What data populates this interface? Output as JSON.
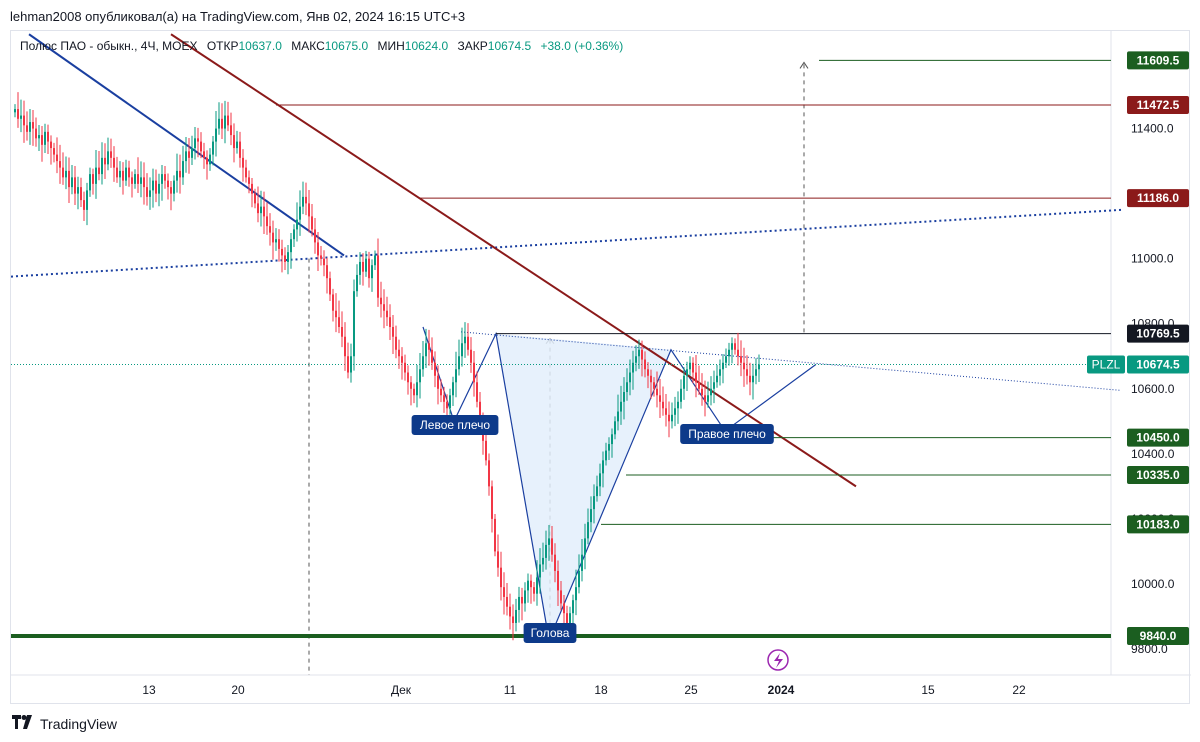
{
  "header": {
    "publisher": "lehman2008 опубликовал(а) на TradingView.com, Янв 02, 2024 16:15 UTC+3"
  },
  "legend": {
    "symbol": "Полюс ПАО - обыкн., 4Ч, MOEX",
    "open_label": "ОТКР",
    "open": "10637.0",
    "high_label": "МАКС",
    "high": "10675.0",
    "low_label": "МИН",
    "low": "10624.0",
    "close_label": "ЗАКР",
    "close": "10674.5",
    "change": "+38.0 (+0.36%)"
  },
  "footer": {
    "brand": "TradingView"
  },
  "colors": {
    "up": "#089981",
    "down": "#f23645",
    "blue_line": "#1a3fa0",
    "maroon": "#8b1a1a",
    "green_level": "#1b5e20",
    "pattern_fill": "#e3eefc"
  },
  "chart_data": {
    "type": "candlestick",
    "y_scale": {
      "min": 9720,
      "max": 11700
    },
    "x_tick_labels": [
      "13",
      "20",
      "Дек",
      "11",
      "18",
      "25",
      "2024",
      "15",
      "22"
    ],
    "y_tick_labels": [
      "11400.0",
      "11000.0",
      "10800.0",
      "10600.0",
      "10400.0",
      "10200.0",
      "10000.0",
      "9800.0"
    ],
    "y_ticks": [
      11400,
      11000,
      10800,
      10600,
      10400,
      10200,
      10000,
      9800
    ],
    "price_tags": [
      {
        "label": "11609.5",
        "value": 11609.5,
        "color": "#1b5e20"
      },
      {
        "label": "11472.5",
        "value": 11472.5,
        "color": "#8b1a1a"
      },
      {
        "label": "11186.0",
        "value": 11186.0,
        "color": "#8b1a1a"
      },
      {
        "label": "10769.5",
        "value": 10769.5,
        "color": "#131722"
      },
      {
        "label": "10674.5",
        "value": 10674.5,
        "color": "#089981",
        "symbol": "PLZL"
      },
      {
        "label": "10450.0",
        "value": 10450.0,
        "color": "#1b5e20"
      },
      {
        "label": "10335.0",
        "value": 10335.0,
        "color": "#1b5e20"
      },
      {
        "label": "10183.0",
        "value": 10183.0,
        "color": "#1b5e20"
      },
      {
        "label": "9840.0",
        "value": 9840.0,
        "color": "#1b5e20"
      }
    ],
    "annotations": [
      "Левое плечо",
      "Голова",
      "Правое плечо"
    ],
    "candles_close": [
      11460,
      11430,
      11440,
      11410,
      11390,
      11420,
      11400,
      11370,
      11380,
      11350,
      11390,
      11360,
      11340,
      11320,
      11300,
      11280,
      11250,
      11270,
      11220,
      11250,
      11200,
      11220,
      11180,
      11150,
      11210,
      11260,
      11230,
      11280,
      11260,
      11310,
      11290,
      11330,
      11310,
      11280,
      11250,
      11270,
      11240,
      11280,
      11250,
      11230,
      11260,
      11230,
      11250,
      11220,
      11190,
      11210,
      11240,
      11200,
      11230,
      11260,
      11240,
      11220,
      11200,
      11240,
      11270,
      11250,
      11300,
      11330,
      11310,
      11340,
      11370,
      11360,
      11330,
      11310,
      11290,
      11320,
      11360,
      11400,
      11430,
      11400,
      11440,
      11410,
      11380,
      11340,
      11360,
      11310,
      11280,
      11250,
      11230,
      11200,
      11170,
      11140,
      11160,
      11130,
      11100,
      11080,
      11050,
      11060,
      11030,
      11010,
      10990,
      11020,
      11060,
      11090,
      11120,
      11160,
      11190,
      11170,
      11130,
      11090,
      11050,
      11010,
      11000,
      10980,
      10940,
      10890,
      10840,
      10820,
      10790,
      10760,
      10700,
      10650,
      10700,
      10900,
      10950,
      10990,
      10960,
      11000,
      10940,
      10980,
      11010,
      10880,
      10860,
      10840,
      10820,
      10790,
      10760,
      10720,
      10700,
      10680,
      10650,
      10620,
      10600,
      10580,
      10620,
      10660,
      10700,
      10740,
      10720,
      10680,
      10640,
      10600,
      10580,
      10560,
      10540,
      10580,
      10620,
      10660,
      10700,
      10740,
      10760,
      10720,
      10680,
      10620,
      10560,
      10500,
      10440,
      10380,
      10300,
      10200,
      10100,
      10050,
      9990,
      9960,
      9930,
      9900,
      9880,
      9920,
      9960,
      9940,
      9980,
      10010,
      9990,
      9970,
      10020,
      10060,
      10080,
      10120,
      10140,
      10090,
      10040,
      9980,
      9940,
      9910,
      9880,
      9910,
      9950,
      9990,
      10040,
      10090,
      10140,
      10190,
      10230,
      10270,
      10300,
      10340,
      10380,
      10410,
      10430,
      10460,
      10500,
      10530,
      10560,
      10590,
      10620,
      10650,
      10680,
      10700,
      10720,
      10690,
      10660,
      10640,
      10620,
      10600,
      10580,
      10560,
      10540,
      10520,
      10500,
      10520,
      10540,
      10560,
      10600,
      10640,
      10660,
      10680,
      10650,
      10620,
      10600,
      10580,
      10560,
      10580,
      10600,
      10620,
      10640,
      10660,
      10680,
      10700,
      10720,
      10740,
      10720,
      10700,
      10680,
      10660,
      10640,
      10620,
      10640,
      10660,
      10674.5
    ]
  }
}
